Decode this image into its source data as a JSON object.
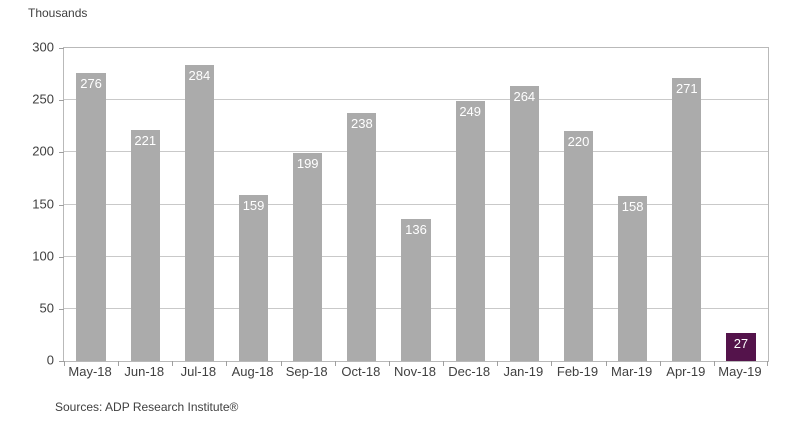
{
  "chart_data": {
    "type": "bar",
    "categories": [
      "May-18",
      "Jun-18",
      "Jul-18",
      "Aug-18",
      "Sep-18",
      "Oct-18",
      "Nov-18",
      "Dec-18",
      "Jan-19",
      "Feb-19",
      "Mar-19",
      "Apr-19",
      "May-19"
    ],
    "values": [
      276,
      221,
      284,
      159,
      199,
      238,
      136,
      249,
      264,
      220,
      158,
      271,
      27
    ],
    "title": "",
    "xlabel": "",
    "ylabel": "Thousands",
    "ylim": [
      0,
      300
    ],
    "yticks": [
      0,
      50,
      100,
      150,
      200,
      250,
      300
    ],
    "grid": true,
    "legend": false,
    "data_labels": true,
    "bar_color": "#ababab",
    "highlight": {
      "index": 12,
      "category": "May-19",
      "color": "#54134b"
    },
    "value_label_color": "#ffffff",
    "source_note": "Sources: ADP Research Institute®"
  }
}
